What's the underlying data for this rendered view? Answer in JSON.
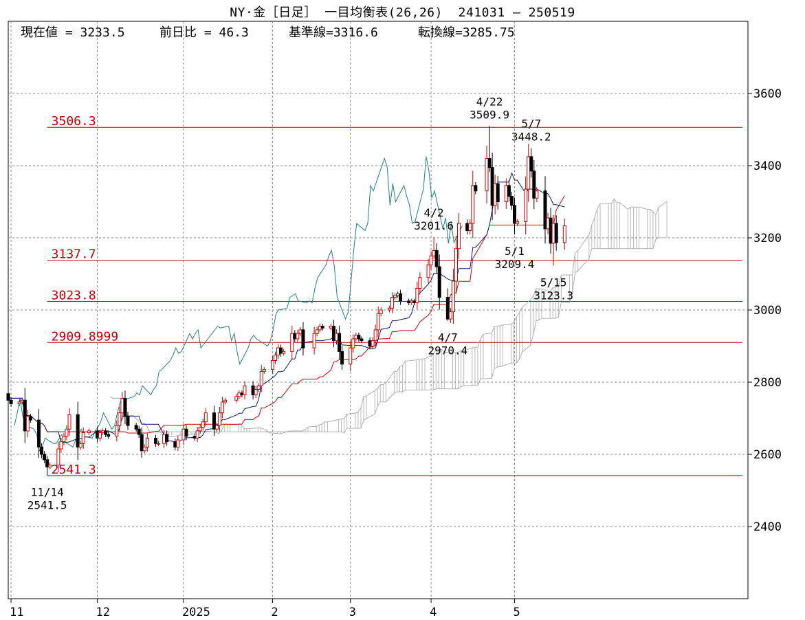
{
  "title": "NY·金［日足］ 一目均衡表(26,26)  241031 – 250519",
  "summary": {
    "current_label": "現在値 = 3233.5",
    "change_label": "前日比 = 46.3",
    "kijun_label": "基準線=3316.6",
    "tenkan_label": "転換線=3285.75"
  },
  "chart_data": {
    "type": "candlestick",
    "xlabel": "",
    "ylabel": "",
    "ylim": [
      2200,
      3800
    ],
    "y_ticks": [
      2400,
      2600,
      2800,
      3000,
      3200,
      3400,
      3600
    ],
    "x_tick_labels": [
      {
        "label": "11",
        "x": "2024-11-01"
      },
      {
        "label": "12",
        "x": "2024-12-02"
      },
      {
        "label": "2025",
        "x": "2025-01-02"
      },
      {
        "label": "2",
        "x": "2025-02-03"
      },
      {
        "label": "3",
        "x": "2025-03-03"
      },
      {
        "label": "4",
        "x": "2025-04-01"
      },
      {
        "label": "5",
        "x": "2025-05-01"
      }
    ],
    "grid": true,
    "horizontal_levels": [
      {
        "label": "3506.3",
        "value": 3506.3,
        "from": "2024-11-14"
      },
      {
        "label": "3137.7",
        "value": 3137.7,
        "from": "2024-11-14"
      },
      {
        "label": "3023.8",
        "value": 3023.8,
        "from": "2024-11-14"
      },
      {
        "label": "2909.8999",
        "value": 2909.9,
        "from": "2024-11-14"
      },
      {
        "label": "2541.3",
        "value": 2541.3,
        "from": "2024-11-14"
      }
    ],
    "annotations": [
      {
        "date": "4/22",
        "value_label": "3509.9",
        "x": "2025-04-22",
        "y": 3509.9,
        "pos": "above"
      },
      {
        "date": "5/7",
        "value_label": "3448.2",
        "x": "2025-05-07",
        "y": 3448.2,
        "pos": "above"
      },
      {
        "date": "4/2",
        "value_label": "3201.6",
        "x": "2025-04-02",
        "y": 3201.6,
        "pos": "above"
      },
      {
        "date": "5/1",
        "value_label": "3209.4",
        "x": "2025-05-01",
        "y": 3209.4,
        "pos": "below"
      },
      {
        "date": "5/15",
        "value_label": "3123.3",
        "x": "2025-05-15",
        "y": 3123.3,
        "pos": "below"
      },
      {
        "date": "4/7",
        "value_label": "2970.4",
        "x": "2025-04-07",
        "y": 2970.4,
        "pos": "below"
      },
      {
        "date": "11/14",
        "value_label": "2541.5",
        "x": "2024-11-14",
        "y": 2541.5,
        "pos": "below"
      }
    ],
    "closes": [
      [
        "2024-10-31",
        2750
      ],
      [
        "2024-11-01",
        2740
      ],
      [
        "2024-11-04",
        2745
      ],
      [
        "2024-11-05",
        2750
      ],
      [
        "2024-11-06",
        2665
      ],
      [
        "2024-11-07",
        2705
      ],
      [
        "2024-11-08",
        2695
      ],
      [
        "2024-11-11",
        2620
      ],
      [
        "2024-11-12",
        2600
      ],
      [
        "2024-11-13",
        2585
      ],
      [
        "2024-11-14",
        2565
      ],
      [
        "2024-11-15",
        2570
      ],
      [
        "2024-11-18",
        2615
      ],
      [
        "2024-11-19",
        2635
      ],
      [
        "2024-11-20",
        2650
      ],
      [
        "2024-11-21",
        2670
      ],
      [
        "2024-11-22",
        2710
      ],
      [
        "2024-11-25",
        2620
      ],
      [
        "2024-11-26",
        2630
      ],
      [
        "2024-11-27",
        2660
      ],
      [
        "2024-11-29",
        2665
      ],
      [
        "2024-12-02",
        2645
      ],
      [
        "2024-12-03",
        2660
      ],
      [
        "2024-12-04",
        2665
      ],
      [
        "2024-12-05",
        2655
      ],
      [
        "2024-12-06",
        2650
      ],
      [
        "2024-12-09",
        2680
      ],
      [
        "2024-12-10",
        2715
      ],
      [
        "2024-12-11",
        2755
      ],
      [
        "2024-12-12",
        2705
      ],
      [
        "2024-12-13",
        2680
      ],
      [
        "2024-12-16",
        2670
      ],
      [
        "2024-12-17",
        2655
      ],
      [
        "2024-12-18",
        2610
      ],
      [
        "2024-12-19",
        2620
      ],
      [
        "2024-12-20",
        2645
      ],
      [
        "2024-12-23",
        2630
      ],
      [
        "2024-12-24",
        2630
      ],
      [
        "2024-12-26",
        2655
      ],
      [
        "2024-12-27",
        2635
      ],
      [
        "2024-12-30",
        2620
      ],
      [
        "2024-12-31",
        2640
      ],
      [
        "2025-01-02",
        2670
      ],
      [
        "2025-01-03",
        2650
      ],
      [
        "2025-01-06",
        2645
      ],
      [
        "2025-01-07",
        2665
      ],
      [
        "2025-01-08",
        2675
      ],
      [
        "2025-01-09",
        2690
      ],
      [
        "2025-01-10",
        2715
      ],
      [
        "2025-01-13",
        2670
      ],
      [
        "2025-01-14",
        2680
      ],
      [
        "2025-01-15",
        2715
      ],
      [
        "2025-01-16",
        2745
      ],
      [
        "2025-01-17",
        2750
      ],
      [
        "2025-01-21",
        2760
      ],
      [
        "2025-01-22",
        2770
      ],
      [
        "2025-01-23",
        2765
      ],
      [
        "2025-01-24",
        2790
      ],
      [
        "2025-01-27",
        2765
      ],
      [
        "2025-01-28",
        2780
      ],
      [
        "2025-01-29",
        2790
      ],
      [
        "2025-01-30",
        2830
      ],
      [
        "2025-01-31",
        2835
      ],
      [
        "2025-02-03",
        2860
      ],
      [
        "2025-02-04",
        2875
      ],
      [
        "2025-02-05",
        2895
      ],
      [
        "2025-02-06",
        2880
      ],
      [
        "2025-02-07",
        2885
      ],
      [
        "2025-02-10",
        2935
      ],
      [
        "2025-02-11",
        2920
      ],
      [
        "2025-02-12",
        2935
      ],
      [
        "2025-02-13",
        2945
      ],
      [
        "2025-02-14",
        2895
      ],
      [
        "2025-02-18",
        2935
      ],
      [
        "2025-02-19",
        2945
      ],
      [
        "2025-02-20",
        2955
      ],
      [
        "2025-02-21",
        2950
      ],
      [
        "2025-02-24",
        2955
      ],
      [
        "2025-02-25",
        2915
      ],
      [
        "2025-02-26",
        2935
      ],
      [
        "2025-02-27",
        2885
      ],
      [
        "2025-02-28",
        2850
      ],
      [
        "2025-03-03",
        2895
      ],
      [
        "2025-03-04",
        2920
      ],
      [
        "2025-03-05",
        2930
      ],
      [
        "2025-03-06",
        2920
      ],
      [
        "2025-03-07",
        2915
      ],
      [
        "2025-03-10",
        2900
      ],
      [
        "2025-03-11",
        2915
      ],
      [
        "2025-03-12",
        2945
      ],
      [
        "2025-03-13",
        2990
      ],
      [
        "2025-03-14",
        3000
      ],
      [
        "2025-03-17",
        3005
      ],
      [
        "2025-03-18",
        3035
      ],
      [
        "2025-03-19",
        3040
      ],
      [
        "2025-03-20",
        3045
      ],
      [
        "2025-03-21",
        3025
      ],
      [
        "2025-03-24",
        3020
      ],
      [
        "2025-03-25",
        3025
      ],
      [
        "2025-03-26",
        3020
      ],
      [
        "2025-03-27",
        3060
      ],
      [
        "2025-03-28",
        3090
      ],
      [
        "2025-03-31",
        3125
      ],
      [
        "2025-04-01",
        3150
      ],
      [
        "2025-04-02",
        3165
      ],
      [
        "2025-04-03",
        3120
      ],
      [
        "2025-04-04",
        3035
      ],
      [
        "2025-04-07",
        2975
      ],
      [
        "2025-04-08",
        2995
      ],
      [
        "2025-04-09",
        3080
      ],
      [
        "2025-04-10",
        3170
      ],
      [
        "2025-04-11",
        3240
      ],
      [
        "2025-04-14",
        3220
      ],
      [
        "2025-04-15",
        3240
      ],
      [
        "2025-04-16",
        3345
      ],
      [
        "2025-04-17",
        3330
      ],
      [
        "2025-04-21",
        3420
      ],
      [
        "2025-04-22",
        3395
      ],
      [
        "2025-04-23",
        3290
      ],
      [
        "2025-04-24",
        3350
      ],
      [
        "2025-04-25",
        3300
      ],
      [
        "2025-04-28",
        3345
      ],
      [
        "2025-04-29",
        3315
      ],
      [
        "2025-04-30",
        3290
      ],
      [
        "2025-05-01",
        3240
      ],
      [
        "2025-05-02",
        3245
      ],
      [
        "2025-05-05",
        3335
      ],
      [
        "2025-05-06",
        3425
      ],
      [
        "2025-05-07",
        3385
      ],
      [
        "2025-05-08",
        3310
      ],
      [
        "2025-05-09",
        3330
      ],
      [
        "2025-05-12",
        3225
      ],
      [
        "2025-05-13",
        3255
      ],
      [
        "2025-05-14",
        3185
      ],
      [
        "2025-05-15",
        3240
      ],
      [
        "2025-05-16",
        3187
      ],
      [
        "2025-05-19",
        3233.5
      ]
    ]
  }
}
